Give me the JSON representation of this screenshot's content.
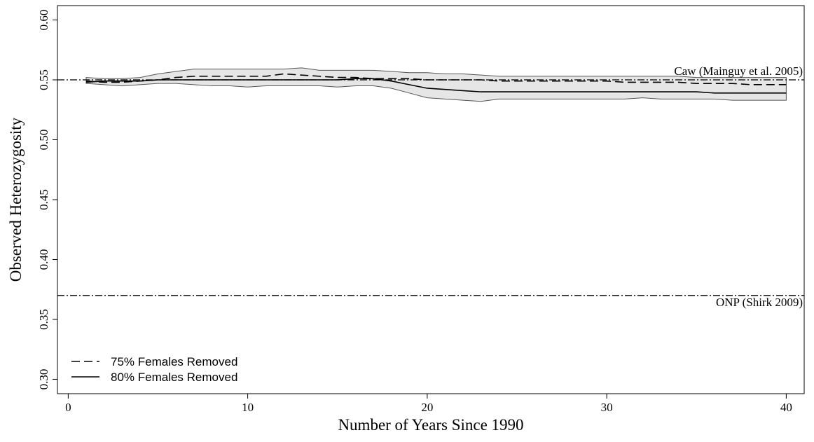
{
  "chart_data": {
    "type": "line",
    "xlabel": "Number of Years Since 1990",
    "ylabel": "Observed Heterozygosity",
    "x": [
      1,
      2,
      3,
      4,
      5,
      6,
      7,
      8,
      9,
      10,
      11,
      12,
      13,
      14,
      15,
      16,
      17,
      18,
      19,
      20,
      21,
      22,
      23,
      24,
      25,
      26,
      27,
      28,
      29,
      30,
      31,
      32,
      33,
      34,
      35,
      36,
      37,
      38,
      39,
      40
    ],
    "series": [
      {
        "name": "75% Females Removed",
        "color": "#000000",
        "dash": "dashed",
        "values": [
          0.549,
          0.548,
          0.548,
          0.549,
          0.55,
          0.552,
          0.553,
          0.553,
          0.553,
          0.553,
          0.553,
          0.555,
          0.554,
          0.553,
          0.552,
          0.552,
          0.551,
          0.551,
          0.551,
          0.55,
          0.55,
          0.55,
          0.55,
          0.549,
          0.549,
          0.549,
          0.549,
          0.549,
          0.549,
          0.549,
          0.548,
          0.548,
          0.548,
          0.548,
          0.547,
          0.547,
          0.547,
          0.546,
          0.546,
          0.546
        ]
      },
      {
        "name": "80% Females Removed",
        "color": "#000000",
        "dash": "solid",
        "values": [
          0.548,
          0.549,
          0.549,
          0.549,
          0.55,
          0.55,
          0.55,
          0.55,
          0.55,
          0.55,
          0.55,
          0.55,
          0.55,
          0.55,
          0.55,
          0.551,
          0.551,
          0.549,
          0.546,
          0.543,
          0.542,
          0.541,
          0.54,
          0.54,
          0.54,
          0.54,
          0.54,
          0.54,
          0.54,
          0.54,
          0.54,
          0.54,
          0.54,
          0.54,
          0.54,
          0.539,
          0.539,
          0.539,
          0.539,
          0.539
        ]
      }
    ],
    "band": {
      "color": "#e6e6e6",
      "upper": [
        0.552,
        0.551,
        0.551,
        0.552,
        0.555,
        0.557,
        0.559,
        0.559,
        0.559,
        0.559,
        0.559,
        0.559,
        0.56,
        0.558,
        0.558,
        0.558,
        0.558,
        0.557,
        0.556,
        0.556,
        0.555,
        0.555,
        0.554,
        0.553,
        0.553,
        0.553,
        0.553,
        0.553,
        0.553,
        0.553,
        0.553,
        0.553,
        0.553,
        0.553,
        0.552,
        0.552,
        0.552,
        0.552,
        0.552,
        0.552
      ],
      "lower": [
        0.547,
        0.546,
        0.545,
        0.546,
        0.547,
        0.547,
        0.546,
        0.545,
        0.545,
        0.544,
        0.545,
        0.545,
        0.545,
        0.545,
        0.544,
        0.545,
        0.545,
        0.543,
        0.539,
        0.535,
        0.534,
        0.533,
        0.532,
        0.534,
        0.534,
        0.534,
        0.534,
        0.534,
        0.534,
        0.534,
        0.534,
        0.535,
        0.534,
        0.534,
        0.534,
        0.534,
        0.533,
        0.533,
        0.533,
        0.533
      ]
    },
    "hlines": [
      {
        "value": 0.55,
        "label": "Caw (Mainguy et al. 2005)"
      },
      {
        "value": 0.37,
        "label": "ONP (Shirk 2009)"
      }
    ],
    "xlim": [
      -0.6,
      41
    ],
    "ylim": [
      0.288,
      0.612
    ],
    "xticks": [
      0,
      10,
      20,
      30,
      40
    ],
    "yticks": [
      {
        "value": 0.3,
        "label": "0.30"
      },
      0.35,
      {
        "value": 0.4,
        "label": "0.40"
      },
      0.45,
      {
        "value": 0.5,
        "label": "0.50"
      },
      0.55,
      {
        "value": 0.6,
        "label": "0.60"
      }
    ],
    "legend": "bottom-left"
  }
}
